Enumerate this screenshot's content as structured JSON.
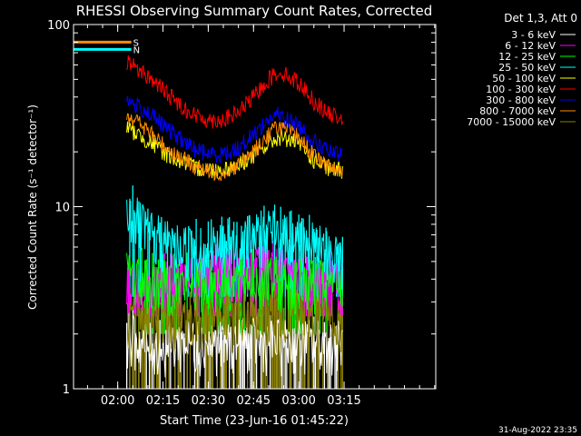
{
  "chart_data": {
    "type": "line",
    "title": "RHESSI Observing Summary Count Rates, Corrected",
    "xlabel": "Start Time (23-Jun-16 01:45:22)",
    "ylabel": "Corrected Count Rate (s⁻¹ detector⁻¹)",
    "x_ticks": [
      "02:00",
      "02:15",
      "02:30",
      "02:45",
      "03:00",
      "03:15"
    ],
    "x_tick_minutes": [
      120,
      135,
      150,
      165,
      180,
      195
    ],
    "xlim_minutes": [
      105.367,
      225.367
    ],
    "y_scale": "log",
    "ylim": [
      1,
      100
    ],
    "y_tick_labels": [
      "1",
      "10",
      "100"
    ],
    "y_ticks": [
      1,
      10,
      100
    ],
    "legend_header": "Det 1,3, Att 0",
    "legend_position": "right",
    "series": [
      {
        "name": "3 - 6 keV",
        "color": "#ffffff",
        "x": [
          123,
          130,
          140,
          150,
          160,
          170,
          180,
          190,
          194.5
        ],
        "y": [
          2.0,
          1.7,
          1.8,
          1.8,
          1.8,
          1.8,
          1.8,
          1.8,
          1.8
        ],
        "lo": 1.0
      },
      {
        "name": "6 - 12 keV",
        "color": "#ff00ff",
        "x": [
          123,
          130,
          140,
          150,
          160,
          170,
          180,
          190,
          194.5
        ],
        "y": [
          4.0,
          3.6,
          3.8,
          4.2,
          4.5,
          4.6,
          4.3,
          4.0,
          3.8
        ],
        "lo": 2.5
      },
      {
        "name": "12 - 25 keV",
        "color": "#00ff00",
        "x": [
          123,
          130,
          140,
          150,
          160,
          170,
          180,
          190,
          194.5
        ],
        "y": [
          4.5,
          3.8,
          3.8,
          3.8,
          4.0,
          4.0,
          3.8,
          3.8,
          3.8
        ],
        "lo": 2.0
      },
      {
        "name": "25 - 50 keV",
        "color": "#00ffff",
        "x": [
          123,
          126,
          130,
          140,
          150,
          160,
          170,
          180,
          190,
          194.5
        ],
        "y": [
          9.5,
          8.5,
          7.0,
          6.0,
          5.8,
          6.3,
          7.2,
          6.5,
          5.6,
          5.3
        ],
        "lo": 3.2
      },
      {
        "name": "50 - 100 keV",
        "color": "#ffff00",
        "x": [
          123,
          125,
          130,
          135,
          140,
          145,
          150,
          155,
          160,
          165,
          170,
          173,
          175,
          180,
          185,
          190,
          194.5
        ],
        "y": [
          27,
          26,
          23,
          20,
          18,
          16.5,
          16,
          16,
          17,
          19,
          22,
          24,
          24,
          22,
          18,
          16,
          16
        ]
      },
      {
        "name": "100 - 300 keV",
        "color": "#ff0000",
        "x": [
          123,
          125,
          130,
          135,
          140,
          145,
          150,
          155,
          160,
          165,
          170,
          173,
          175,
          180,
          185,
          190,
          194.5
        ],
        "y": [
          63,
          60,
          52,
          44,
          37,
          32,
          30,
          30,
          33,
          40,
          50,
          55,
          54,
          48,
          38,
          32,
          31
        ]
      },
      {
        "name": "300 - 800 keV",
        "color": "#0000ff",
        "x": [
          123,
          125,
          130,
          135,
          140,
          145,
          150,
          155,
          160,
          165,
          170,
          173,
          175,
          180,
          185,
          190,
          194.5
        ],
        "y": [
          38,
          37,
          33,
          28,
          24,
          21,
          19.5,
          19.5,
          21,
          25,
          30,
          32,
          31,
          28,
          23,
          20,
          19
        ]
      },
      {
        "name": "800 - 7000 keV",
        "color": "#ff8c00",
        "x": [
          123,
          125,
          130,
          135,
          140,
          145,
          150,
          155,
          160,
          165,
          170,
          173,
          175,
          180,
          185,
          190,
          194.5
        ],
        "y": [
          32,
          31,
          26,
          22,
          19,
          17,
          15.5,
          15.5,
          17,
          20,
          25,
          28,
          27,
          24,
          19,
          16.5,
          16
        ]
      },
      {
        "name": "7000 - 15000 keV",
        "color": "#8b8000",
        "x": [
          123,
          130,
          140,
          150,
          160,
          170,
          180,
          190,
          194.5
        ],
        "y": [
          2.5,
          2.3,
          2.5,
          2.5,
          2.6,
          2.7,
          2.6,
          2.5,
          2.4
        ],
        "lo": 1.0
      }
    ],
    "flags": [
      {
        "label": "S",
        "color": "#ff8c00",
        "x_start": 105.367,
        "x_end": 124.5,
        "level": 80
      },
      {
        "label": "N",
        "color": "#00ffff",
        "x_start": 105.367,
        "x_end": 124.5,
        "level": 73
      }
    ],
    "timestamp": "31-Aug-2022 23:35"
  }
}
